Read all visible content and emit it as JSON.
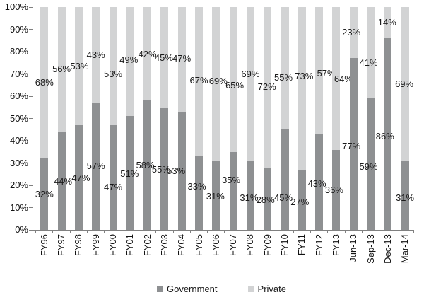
{
  "chart_data": {
    "type": "bar",
    "variant": "stacked-100-percent",
    "title": "",
    "categories": [
      "FY96",
      "FY97",
      "FY98",
      "FY99",
      "FY00",
      "FY01",
      "FY02",
      "FY03",
      "FY04",
      "FY05",
      "FY06",
      "FY07",
      "FY08",
      "FY09",
      "FY10",
      "FY11",
      "FY12",
      "FY13",
      "Jun-13",
      "Sep-13",
      "Dec-13",
      "Mar-14"
    ],
    "series": [
      {
        "name": "Government",
        "color": "#8e9092",
        "values": [
          32,
          44,
          47,
          57,
          47,
          51,
          58,
          55,
          53,
          33,
          31,
          35,
          31,
          28,
          45,
          27,
          43,
          36,
          77,
          59,
          86,
          31
        ]
      },
      {
        "name": "Private",
        "color": "#d2d3d4",
        "values": [
          68,
          56,
          53,
          43,
          53,
          49,
          42,
          45,
          47,
          67,
          69,
          65,
          69,
          72,
          55,
          73,
          57,
          64,
          23,
          41,
          14,
          69
        ]
      }
    ],
    "data_labels": true,
    "label_suffix": "%",
    "xlabel": "",
    "ylabel": "",
    "y_axis": {
      "min": 0,
      "max": 100,
      "step": 10,
      "tick_labels": [
        "0%",
        "10%",
        "20%",
        "30%",
        "40%",
        "50%",
        "60%",
        "70%",
        "80%",
        "90%",
        "100%"
      ]
    },
    "grid": false,
    "legend": {
      "position": "bottom",
      "items": [
        "Government",
        "Private"
      ]
    },
    "layout_hints": {
      "axis_color": "#808080",
      "text_color": "#1a1a1a",
      "x_labels_rotated_bottom_to_top": true,
      "label_offsets": {
        "government_dx": [
          0,
          2,
          3,
          0,
          0,
          -1,
          -3,
          -5,
          -8,
          -3,
          -1,
          -3,
          -2,
          -3,
          -2,
          -3,
          -3,
          -3,
          -3,
          -3,
          -4,
          0
        ],
        "government_dy": [
          0,
          1,
          1,
          0,
          14,
          1,
          0,
          2,
          0,
          -9,
          2,
          -15,
          4,
          2,
          26,
          4,
          3,
          1,
          3,
          4,
          3,
          4
        ],
        "private_dx": [
          0,
          0,
          1,
          0,
          0,
          -2,
          0,
          -1,
          0,
          0,
          3,
          2,
          0,
          -1,
          -2,
          3,
          10,
          10,
          -3,
          -3,
          -1,
          -1
        ],
        "private_dy": [
          0,
          0,
          1,
          0,
          12,
          -2,
          1,
          1,
          -1,
          -2,
          -4,
          9,
          -14,
          0,
          13,
          -17,
          4,
          1,
          0,
          14,
          0,
          0
        ]
      }
    }
  }
}
